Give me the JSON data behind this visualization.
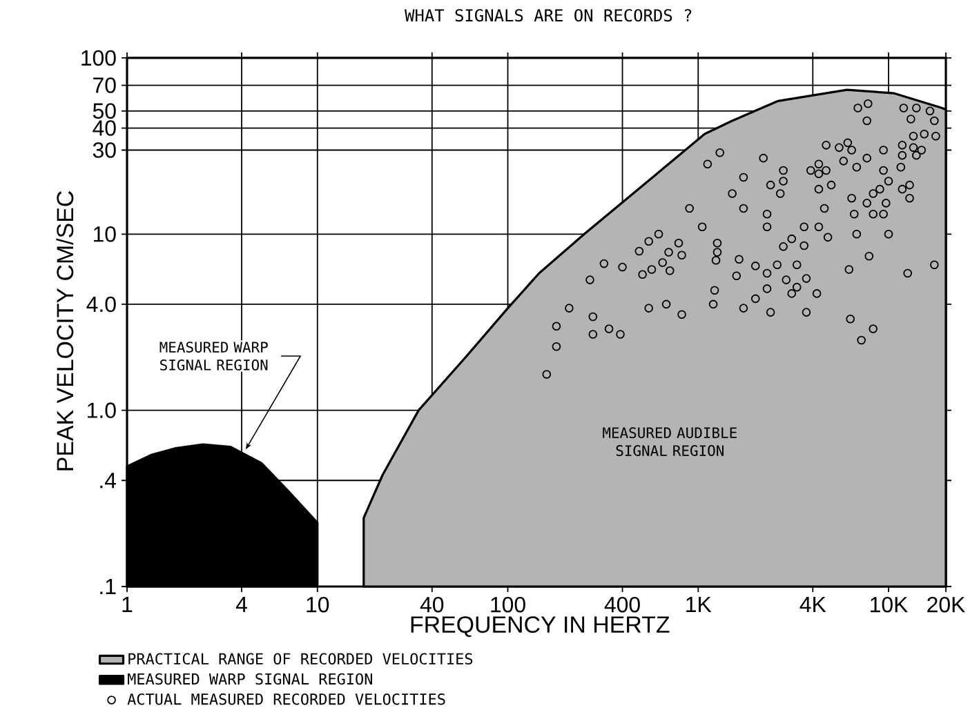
{
  "chart_data": {
    "type": "scatter",
    "title": "WHAT SIGNALS ARE ON RECORDS ?",
    "xlabel": "FREQUENCY IN HERTZ",
    "ylabel": "PEAK VELOCITY CM/SEC",
    "log": "xy",
    "grid": true,
    "legend": "bottom",
    "xlim": [
      1,
      20000
    ],
    "ylim": [
      0.1,
      100
    ],
    "xticks": [
      1,
      4,
      10,
      40,
      100,
      400,
      {
        "value": 1000,
        "label": "1K"
      },
      {
        "value": 4000,
        "label": "4K"
      },
      {
        "value": 10000,
        "label": "10K"
      },
      {
        "value": 20000,
        "label": "20K"
      }
    ],
    "yticks": [
      {
        "value": 0.1,
        "label": ".1"
      },
      {
        "value": 0.4,
        "label": ".4"
      },
      {
        "value": 1,
        "label": "1.0"
      },
      {
        "value": 4,
        "label": "4.0"
      },
      10,
      30,
      40,
      50,
      70,
      100
    ],
    "annotations": [
      {
        "text": "MEASURED WARP SIGNAL REGION",
        "x": 4.2,
        "y": 0.6
      },
      "MEASURED AUDIBLE SIGNAL REGION"
    ],
    "series": [
      {
        "name": "PRACTICAL RANGE OF RECORDED VELOCITIES",
        "type": "area",
        "color": "#b4b4b4",
        "x": [
          17.5,
          22,
          34,
          60,
          100,
          146,
          252,
          656,
          1080,
          1510,
          2630,
          6050,
          10700,
          19100,
          20000
        ],
        "values": [
          0.245,
          0.43,
          1.0,
          2.0,
          3.8,
          6.0,
          10,
          23.6,
          37,
          44,
          57,
          66,
          63,
          52,
          51
        ]
      },
      {
        "name": "MEASURED WARP SIGNAL REGION",
        "type": "area",
        "color": "#000000",
        "x": [
          1,
          1.35,
          1.8,
          2.5,
          3.5,
          5.1,
          7,
          10
        ],
        "values": [
          0.48,
          0.56,
          0.61,
          0.64,
          0.62,
          0.5,
          0.35,
          0.23
        ]
      },
      {
        "name": "ACTUAL MEASURED RECORDED VELOCITIES",
        "marker": "circle",
        "color": "#000000",
        "x": [
          1300,
          1120,
          900,
          1050,
          620,
          550,
          790,
          490,
          700,
          820,
          650,
          320,
          400,
          570,
          710,
          510,
          270,
          210,
          550,
          680,
          820,
          280,
          180,
          340,
          280,
          390,
          180,
          160,
          1260,
          1260,
          1240,
          1640,
          1590,
          1220,
          1200,
          1510,
          1730,
          1730,
          1730,
          6900,
          7800,
          7700,
          12000,
          13100,
          14000,
          16500,
          17400,
          13500,
          15400,
          17700,
          11800,
          13500,
          14900,
          4700,
          5500,
          6100,
          6400,
          9400,
          2200,
          5800,
          6800,
          7700,
          11800,
          14000,
          11600,
          9400,
          2800,
          4300,
          3900,
          4700,
          2800,
          4300,
          10000,
          2400,
          5000,
          4300,
          2700,
          9000,
          8300,
          12900,
          11800,
          12900,
          6400,
          7700,
          9700,
          2300,
          2300,
          4600,
          6600,
          8300,
          9400,
          4300,
          3600,
          4800,
          6800,
          10000,
          3100,
          2800,
          3600,
          2000,
          2300,
          2600,
          3300,
          7900,
          6200,
          12600,
          17400,
          2900,
          3700,
          3300,
          2300,
          3100,
          4200,
          2000,
          2400,
          3700,
          6300,
          8300,
          7200
        ],
        "values": [
          29,
          25,
          14,
          11,
          10,
          9.1,
          8.9,
          8.0,
          7.9,
          7.6,
          6.9,
          6.8,
          6.5,
          6.3,
          6.2,
          5.9,
          5.5,
          3.8,
          3.8,
          4.0,
          3.5,
          3.4,
          3.0,
          2.9,
          2.7,
          2.7,
          2.3,
          1.6,
          8.9,
          7.9,
          7.1,
          7.2,
          5.8,
          4.8,
          4.0,
          17,
          14,
          21,
          3.8,
          52,
          55,
          44,
          52,
          45,
          52,
          50,
          44,
          36,
          37,
          36,
          32,
          31,
          30,
          32,
          31,
          33,
          30,
          30,
          27,
          26,
          24,
          27,
          28,
          28,
          24,
          23,
          23,
          25,
          23,
          23,
          20,
          22,
          20,
          19,
          19,
          18,
          17,
          18,
          17,
          19,
          18,
          16,
          16,
          15,
          15,
          13,
          11,
          14,
          13,
          13,
          13,
          11,
          11,
          9.6,
          10,
          10,
          9.4,
          8.5,
          8.6,
          6.6,
          6.0,
          6.7,
          6.7,
          7.5,
          6.3,
          6.0,
          6.7,
          5.5,
          5.6,
          5.0,
          4.9,
          4.6,
          4.6,
          4.3,
          3.6,
          3.6,
          3.3,
          2.9,
          2.5
        ]
      }
    ]
  }
}
